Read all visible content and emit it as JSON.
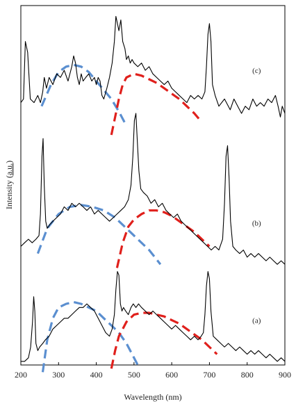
{
  "chart_data": {
    "type": "line",
    "title": "",
    "xlabel": "Wavelength (nm)",
    "ylabel_parts": [
      "Intensity (",
      "a.u.",
      ")"
    ],
    "xlim": [
      200,
      900
    ],
    "xticks": [
      200,
      300,
      400,
      500,
      600,
      700,
      800,
      900
    ],
    "ylim": [
      0,
      1
    ],
    "y_ticks_shown": false,
    "grid": false,
    "colors": {
      "spectrum": "#000000",
      "fit_blue": "#5b8fd0",
      "fit_red": "#e0201c",
      "ylabel_underline": "#d02020"
    },
    "series": [
      {
        "name": "(c)",
        "x": [
          200,
          207,
          212,
          218,
          225,
          235,
          245,
          252,
          258,
          262,
          268,
          275,
          285,
          295,
          305,
          315,
          325,
          335,
          340,
          345,
          350,
          355,
          360,
          365,
          372,
          380,
          388,
          395,
          400,
          405,
          410,
          415,
          420,
          428,
          435,
          442,
          448,
          452,
          456,
          460,
          465,
          470,
          476,
          480,
          485,
          490,
          495,
          500,
          510,
          520,
          530,
          540,
          550,
          560,
          570,
          580,
          590,
          600,
          610,
          620,
          630,
          640,
          650,
          660,
          670,
          680,
          688,
          692,
          696,
          700,
          704,
          708,
          715,
          725,
          740,
          755,
          765,
          775,
          785,
          795,
          805,
          815,
          825,
          835,
          845,
          855,
          865,
          875,
          882,
          888,
          893,
          900
        ],
        "y": [
          0.73,
          0.74,
          0.9,
          0.87,
          0.74,
          0.73,
          0.75,
          0.73,
          0.76,
          0.8,
          0.77,
          0.8,
          0.78,
          0.81,
          0.8,
          0.82,
          0.79,
          0.83,
          0.86,
          0.84,
          0.8,
          0.78,
          0.81,
          0.79,
          0.8,
          0.81,
          0.79,
          0.8,
          0.78,
          0.8,
          0.79,
          0.75,
          0.74,
          0.77,
          0.8,
          0.84,
          0.9,
          0.97,
          0.95,
          0.93,
          0.96,
          0.9,
          0.88,
          0.85,
          0.86,
          0.84,
          0.85,
          0.84,
          0.83,
          0.84,
          0.82,
          0.83,
          0.81,
          0.8,
          0.79,
          0.78,
          0.79,
          0.77,
          0.76,
          0.75,
          0.74,
          0.73,
          0.75,
          0.74,
          0.75,
          0.74,
          0.76,
          0.83,
          0.92,
          0.95,
          0.9,
          0.78,
          0.75,
          0.72,
          0.74,
          0.71,
          0.74,
          0.72,
          0.7,
          0.72,
          0.71,
          0.74,
          0.72,
          0.73,
          0.72,
          0.74,
          0.73,
          0.75,
          0.72,
          0.69,
          0.72,
          0.7
        ]
      },
      {
        "name": "(b)",
        "x": [
          200,
          210,
          220,
          230,
          240,
          248,
          252,
          256,
          259,
          262,
          266,
          270,
          276,
          285,
          295,
          305,
          315,
          325,
          335,
          345,
          355,
          365,
          375,
          385,
          395,
          405,
          415,
          425,
          435,
          445,
          455,
          465,
          475,
          485,
          492,
          497,
          501,
          505,
          509,
          513,
          518,
          525,
          535,
          545,
          555,
          565,
          575,
          585,
          595,
          605,
          615,
          625,
          635,
          645,
          655,
          665,
          675,
          685,
          695,
          705,
          715,
          725,
          735,
          740,
          744,
          748,
          752,
          756,
          762,
          770,
          780,
          790,
          800,
          810,
          820,
          830,
          840,
          850,
          860,
          870,
          880,
          890,
          900
        ],
        "y": [
          0.33,
          0.34,
          0.35,
          0.34,
          0.35,
          0.36,
          0.42,
          0.58,
          0.63,
          0.5,
          0.4,
          0.38,
          0.39,
          0.4,
          0.41,
          0.42,
          0.44,
          0.43,
          0.45,
          0.44,
          0.45,
          0.44,
          0.43,
          0.44,
          0.42,
          0.43,
          0.42,
          0.41,
          0.4,
          0.41,
          0.42,
          0.43,
          0.44,
          0.46,
          0.5,
          0.58,
          0.68,
          0.7,
          0.62,
          0.54,
          0.49,
          0.48,
          0.47,
          0.45,
          0.46,
          0.44,
          0.45,
          0.43,
          0.42,
          0.41,
          0.42,
          0.4,
          0.39,
          0.38,
          0.37,
          0.36,
          0.35,
          0.34,
          0.33,
          0.32,
          0.33,
          0.32,
          0.35,
          0.45,
          0.58,
          0.61,
          0.52,
          0.4,
          0.33,
          0.32,
          0.31,
          0.32,
          0.3,
          0.31,
          0.3,
          0.31,
          0.3,
          0.29,
          0.3,
          0.29,
          0.28,
          0.29,
          0.28
        ]
      },
      {
        "name": "(a)",
        "x": [
          200,
          210,
          220,
          226,
          231,
          234,
          237,
          240,
          245,
          250,
          258,
          265,
          275,
          285,
          295,
          305,
          315,
          325,
          335,
          345,
          355,
          365,
          375,
          385,
          395,
          405,
          415,
          425,
          435,
          442,
          448,
          452,
          456,
          460,
          464,
          468,
          472,
          478,
          485,
          492,
          498,
          505,
          512,
          520,
          530,
          540,
          550,
          560,
          570,
          580,
          590,
          600,
          610,
          620,
          630,
          640,
          650,
          660,
          670,
          678,
          684,
          688,
          692,
          696,
          700,
          704,
          710,
          720,
          730,
          740,
          750,
          760,
          770,
          780,
          790,
          800,
          810,
          820,
          830,
          840,
          850,
          860,
          870,
          880,
          890,
          900
        ],
        "y": [
          0.01,
          0.01,
          0.02,
          0.05,
          0.12,
          0.19,
          0.15,
          0.06,
          0.04,
          0.05,
          0.06,
          0.07,
          0.08,
          0.1,
          0.11,
          0.12,
          0.13,
          0.13,
          0.14,
          0.15,
          0.16,
          0.16,
          0.17,
          0.16,
          0.15,
          0.13,
          0.11,
          0.09,
          0.08,
          0.1,
          0.14,
          0.21,
          0.26,
          0.25,
          0.17,
          0.15,
          0.16,
          0.15,
          0.14,
          0.16,
          0.17,
          0.16,
          0.17,
          0.16,
          0.15,
          0.14,
          0.15,
          0.14,
          0.13,
          0.12,
          0.11,
          0.1,
          0.11,
          0.1,
          0.09,
          0.08,
          0.07,
          0.08,
          0.07,
          0.08,
          0.09,
          0.14,
          0.22,
          0.26,
          0.24,
          0.15,
          0.08,
          0.07,
          0.06,
          0.05,
          0.06,
          0.05,
          0.04,
          0.05,
          0.04,
          0.03,
          0.04,
          0.03,
          0.04,
          0.03,
          0.02,
          0.03,
          0.02,
          0.01,
          0.02,
          0.01
        ]
      }
    ],
    "fits": [
      {
        "color": "blue",
        "x": [
          255,
          280,
          300,
          320,
          340,
          360,
          380,
          400,
          420,
          440,
          460,
          475
        ],
        "y": [
          0.72,
          0.78,
          0.815,
          0.83,
          0.835,
          0.83,
          0.815,
          0.79,
          0.765,
          0.74,
          0.705,
          0.675
        ]
      },
      {
        "color": "red",
        "x": [
          440,
          450,
          460,
          470,
          480,
          500,
          520,
          540,
          560,
          580,
          600,
          620,
          640,
          660,
          680
        ],
        "y": [
          0.64,
          0.69,
          0.74,
          0.78,
          0.8,
          0.81,
          0.805,
          0.795,
          0.785,
          0.77,
          0.755,
          0.74,
          0.72,
          0.7,
          0.675
        ]
      },
      {
        "color": "blue",
        "x": [
          245,
          270,
          300,
          330,
          360,
          390,
          420,
          450,
          480,
          510,
          540,
          570
        ],
        "y": [
          0.31,
          0.38,
          0.42,
          0.44,
          0.445,
          0.44,
          0.43,
          0.41,
          0.38,
          0.35,
          0.32,
          0.28
        ]
      },
      {
        "color": "red",
        "x": [
          455,
          470,
          485,
          500,
          520,
          540,
          560,
          580,
          600,
          620,
          640,
          660,
          680,
          700
        ],
        "y": [
          0.27,
          0.34,
          0.385,
          0.405,
          0.42,
          0.43,
          0.43,
          0.425,
          0.415,
          0.4,
          0.385,
          0.37,
          0.35,
          0.33
        ]
      },
      {
        "color": "blue",
        "x": [
          258,
          270,
          285,
          300,
          320,
          340,
          360,
          380,
          400,
          420,
          440,
          460,
          480,
          500,
          515
        ],
        "y": [
          -0.02,
          0.07,
          0.13,
          0.16,
          0.17,
          0.175,
          0.17,
          0.16,
          0.15,
          0.13,
          0.11,
          0.09,
          0.06,
          0.02,
          -0.01
        ]
      },
      {
        "color": "red",
        "x": [
          440,
          450,
          460,
          470,
          480,
          500,
          520,
          540,
          560,
          580,
          600,
          620,
          640,
          660,
          680,
          700,
          720
        ],
        "y": [
          -0.01,
          0.04,
          0.08,
          0.1,
          0.12,
          0.14,
          0.145,
          0.145,
          0.14,
          0.135,
          0.125,
          0.115,
          0.1,
          0.085,
          0.07,
          0.05,
          0.03
        ]
      }
    ]
  }
}
